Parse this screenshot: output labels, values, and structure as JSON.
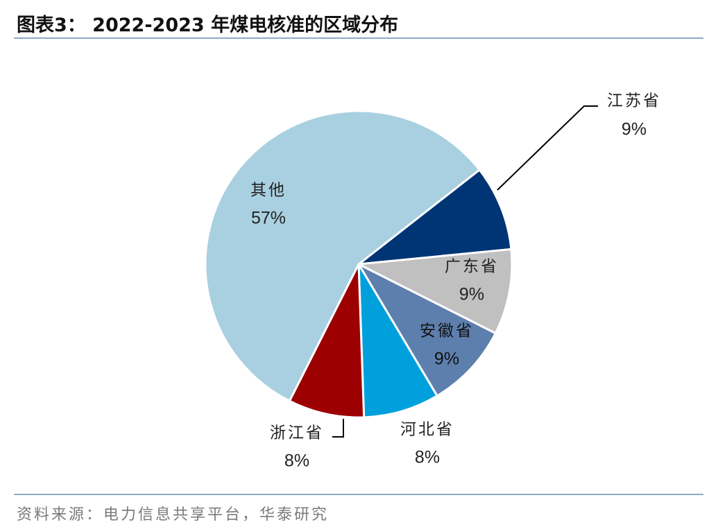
{
  "header": {
    "title": "图表3：  2022-2023 年煤电核准的区域分布"
  },
  "footer": {
    "source": "资料来源：电力信息共享平台，华泰研究"
  },
  "chart_data": {
    "type": "pie",
    "title": "图表3：  2022-2023 年煤电核准的区域分布",
    "slices": [
      {
        "label": "江苏省",
        "value": 9,
        "display": "9%",
        "color": "#003575"
      },
      {
        "label": "广东省",
        "value": 9,
        "display": "9%",
        "color": "#c0c0c0"
      },
      {
        "label": "安徽省",
        "value": 9,
        "display": "9%",
        "color": "#5d7fad"
      },
      {
        "label": "河北省",
        "value": 8,
        "display": "8%",
        "color": "#00a0dc"
      },
      {
        "label": "浙江省",
        "value": 8,
        "display": "8%",
        "color": "#9d0000"
      },
      {
        "label": "其他",
        "value": 57,
        "display": "57%",
        "color": "#a8d0e0"
      }
    ]
  }
}
